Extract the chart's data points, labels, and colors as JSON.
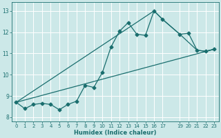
{
  "xlabel": "Humidex (Indice chaleur)",
  "bg_color": "#cce8e8",
  "line_color": "#1a6e6e",
  "xlim": [
    -0.5,
    23.5
  ],
  "ylim": [
    7.8,
    13.4
  ],
  "xticks": [
    0,
    1,
    2,
    3,
    4,
    5,
    6,
    7,
    8,
    9,
    10,
    11,
    12,
    13,
    14,
    15,
    16,
    17,
    19,
    20,
    21,
    22,
    23
  ],
  "yticks": [
    8,
    9,
    10,
    11,
    12,
    13
  ],
  "line1_x": [
    0,
    1,
    2,
    3,
    4,
    5,
    6,
    7,
    8,
    9,
    10,
    11,
    12,
    13,
    14,
    15,
    16,
    17,
    19,
    20,
    21,
    22,
    23
  ],
  "line1_y": [
    8.7,
    8.4,
    8.6,
    8.65,
    8.6,
    8.35,
    8.6,
    8.75,
    9.5,
    9.4,
    10.1,
    11.3,
    12.05,
    12.45,
    11.9,
    11.85,
    13.0,
    12.6,
    11.9,
    11.95,
    11.15,
    11.1,
    11.2
  ],
  "line2_x": [
    0,
    16,
    17,
    19,
    21,
    22,
    23
  ],
  "line2_y": [
    8.7,
    13.0,
    12.6,
    11.9,
    11.15,
    11.1,
    11.2
  ],
  "line3_x": [
    0,
    23
  ],
  "line3_y": [
    8.7,
    11.2
  ]
}
